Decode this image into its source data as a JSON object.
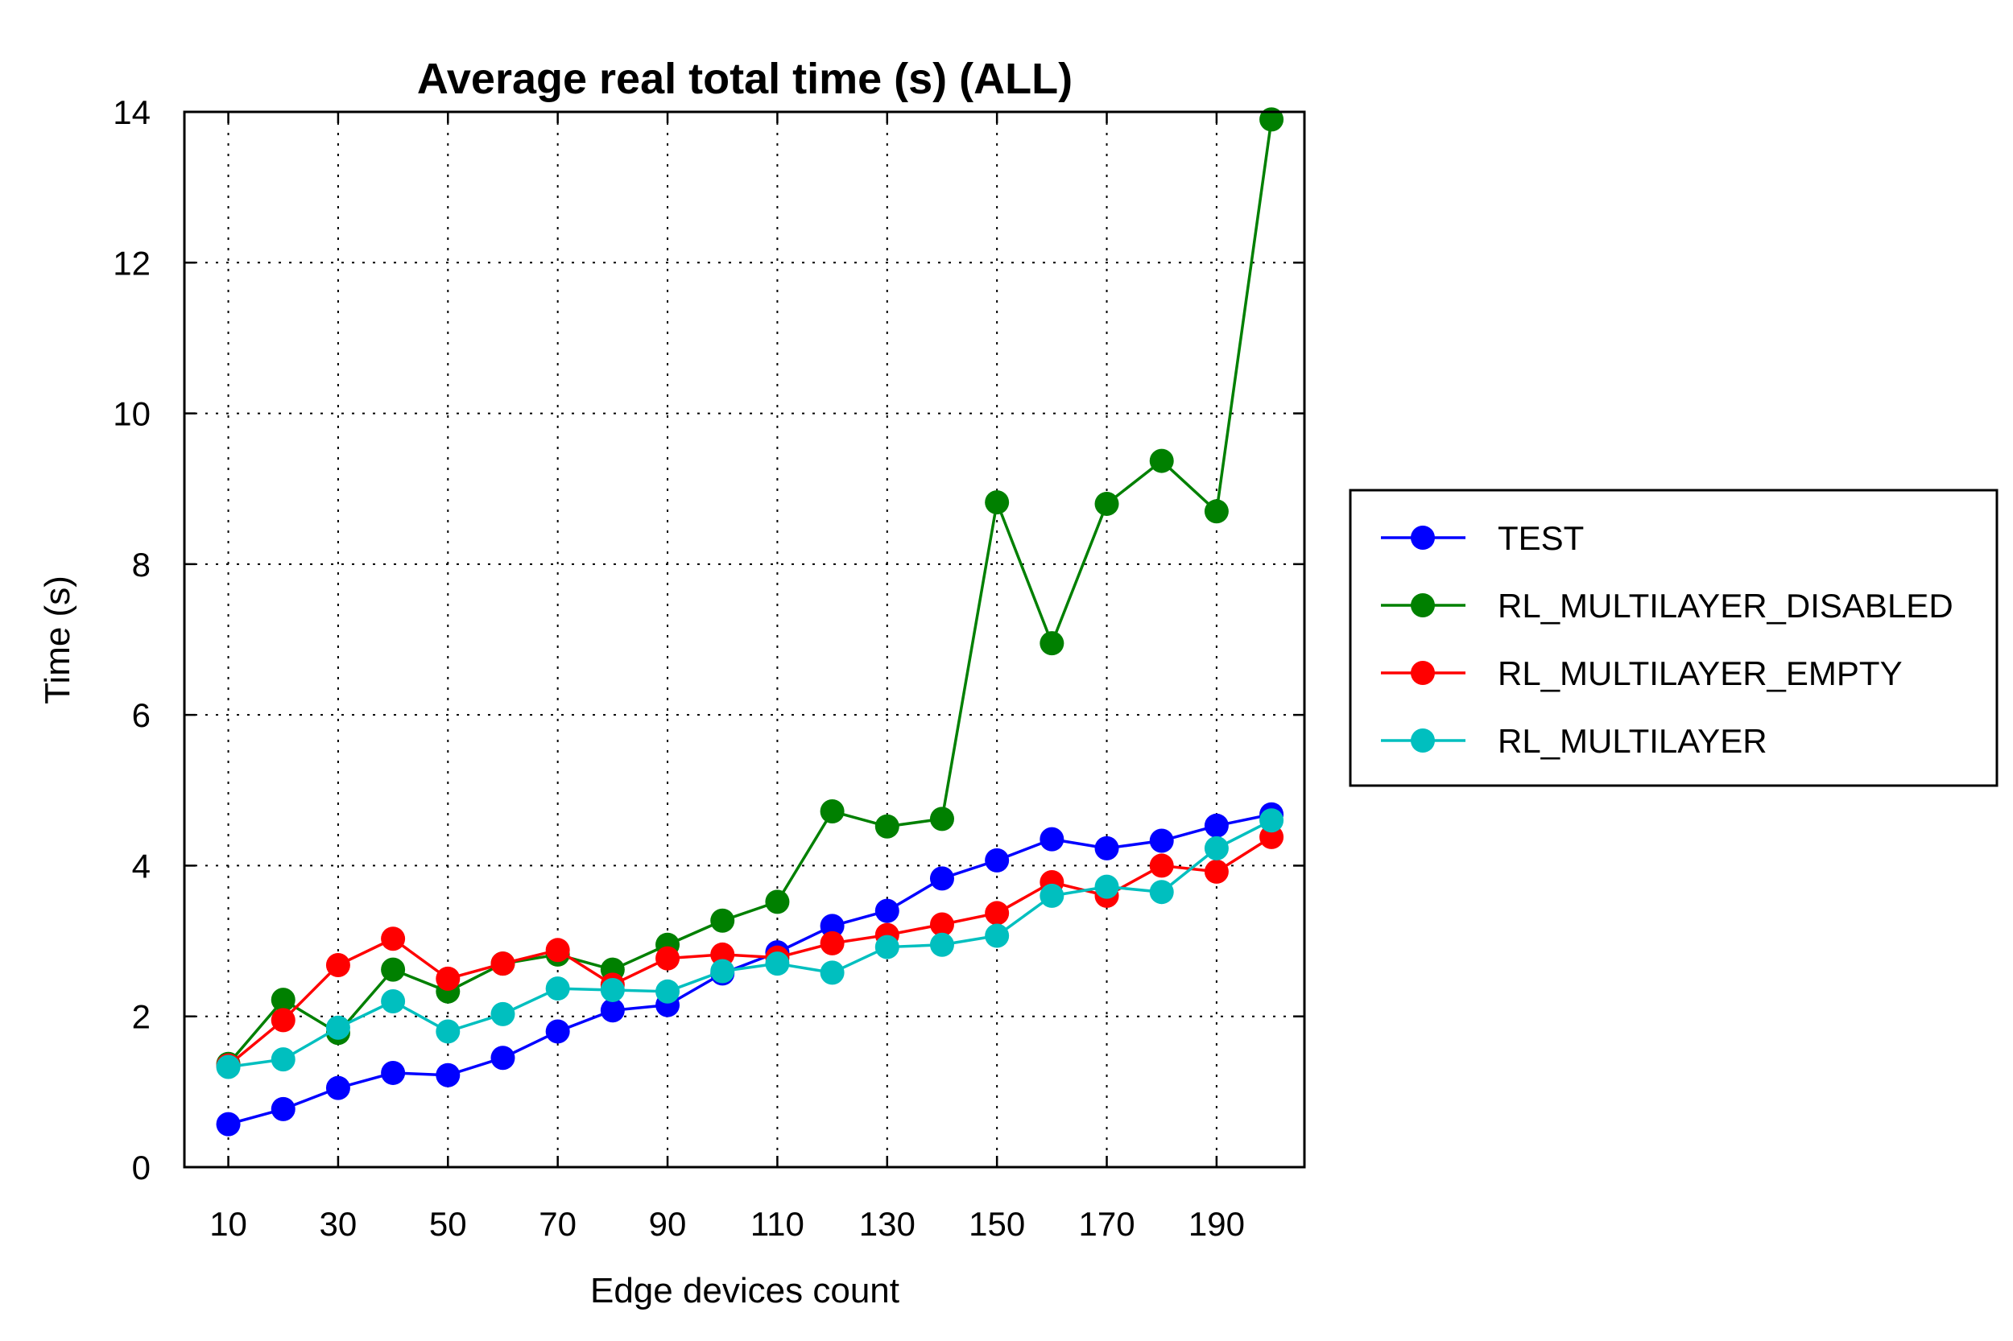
{
  "chart_data": {
    "type": "line",
    "title": "Average real total time (s) (ALL)",
    "xlabel": "Edge devices count",
    "ylabel": "Time (s)",
    "xlim": [
      2,
      206
    ],
    "ylim": [
      0,
      14.0
    ],
    "x_ticks": [
      10,
      30,
      50,
      70,
      90,
      110,
      130,
      150,
      170,
      190
    ],
    "y_ticks": [
      0,
      2,
      4,
      6,
      8,
      10,
      12,
      14
    ],
    "grid": true,
    "legend_position": "right",
    "x": [
      10,
      20,
      30,
      40,
      50,
      60,
      70,
      80,
      90,
      100,
      110,
      120,
      130,
      140,
      150,
      160,
      170,
      180,
      190,
      200
    ],
    "series": [
      {
        "name": "TEST",
        "color": "#0000ff",
        "values": [
          0.57,
          0.77,
          1.05,
          1.25,
          1.22,
          1.45,
          1.8,
          2.08,
          2.15,
          2.57,
          2.85,
          3.2,
          3.4,
          3.83,
          4.07,
          4.35,
          4.23,
          4.33,
          4.53,
          4.68
        ]
      },
      {
        "name": "RL_MULTILAYER_DISABLED",
        "color": "#008000",
        "values": [
          1.37,
          2.22,
          1.78,
          2.62,
          2.33,
          2.7,
          2.82,
          2.62,
          2.95,
          3.27,
          3.52,
          4.72,
          4.52,
          4.62,
          8.82,
          6.95,
          8.8,
          9.37,
          8.7,
          13.9
        ]
      },
      {
        "name": "RL_MULTILAYER_EMPTY",
        "color": "#ff0000",
        "values": [
          1.35,
          1.95,
          2.68,
          3.03,
          2.5,
          2.7,
          2.88,
          2.42,
          2.77,
          2.82,
          2.78,
          2.97,
          3.08,
          3.22,
          3.37,
          3.78,
          3.6,
          4.0,
          3.92,
          4.38
        ]
      },
      {
        "name": "RL_MULTILAYER",
        "color": "#00bfbf",
        "values": [
          1.33,
          1.43,
          1.85,
          2.2,
          1.8,
          2.03,
          2.37,
          2.35,
          2.33,
          2.6,
          2.7,
          2.58,
          2.92,
          2.95,
          3.07,
          3.6,
          3.72,
          3.65,
          4.23,
          4.6
        ]
      }
    ]
  }
}
